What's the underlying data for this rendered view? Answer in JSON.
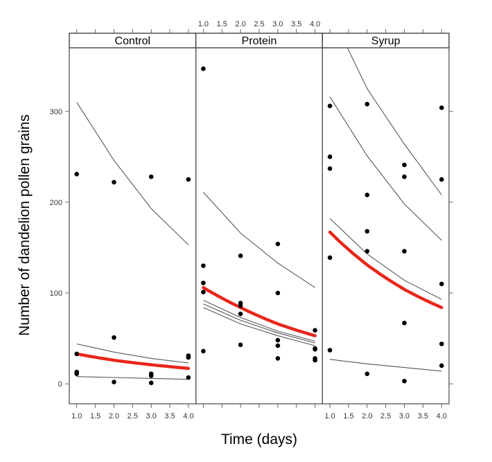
{
  "chart_data": {
    "type": "scatter",
    "layout": "trellis",
    "xlabel": "Time (days)",
    "ylabel": "Number of dandelion pollen grains",
    "xlim": [
      0.8,
      4.2
    ],
    "ylim": [
      -22,
      370
    ],
    "x_ticks": [
      1.0,
      1.5,
      2.0,
      2.5,
      3.0,
      3.5,
      4.0
    ],
    "x_tick_labels": [
      "1.0",
      "1.5",
      "2.0",
      "2.5",
      "3.0",
      "3.5",
      "4.0"
    ],
    "y_ticks": [
      0,
      100,
      200,
      300
    ],
    "y_tick_labels": [
      "0",
      "100",
      "200",
      "300"
    ],
    "colors": {
      "points": "#000000",
      "fit": "#e8261a",
      "curves": "#555555",
      "frame": "#777777"
    },
    "panels": [
      {
        "name": "Control",
        "points": [
          {
            "x": 1,
            "y": 231
          },
          {
            "x": 1,
            "y": 33
          },
          {
            "x": 1,
            "y": 13
          },
          {
            "x": 1,
            "y": 11
          },
          {
            "x": 2,
            "y": 222
          },
          {
            "x": 2,
            "y": 51
          },
          {
            "x": 2,
            "y": 2
          },
          {
            "x": 3,
            "y": 228
          },
          {
            "x": 3,
            "y": 11
          },
          {
            "x": 3,
            "y": 9
          },
          {
            "x": 3,
            "y": 1
          },
          {
            "x": 4,
            "y": 225
          },
          {
            "x": 4,
            "y": 31
          },
          {
            "x": 4,
            "y": 29
          },
          {
            "x": 4,
            "y": 7
          }
        ],
        "fit": {
          "x": [
            1,
            2,
            3,
            4
          ],
          "y": [
            33,
            26,
            21,
            17
          ]
        },
        "curves": [
          {
            "x": [
              1,
              2,
              3,
              4
            ],
            "y": [
              310,
              246,
              193,
              153
            ]
          },
          {
            "x": [
              1,
              2,
              3,
              4
            ],
            "y": [
              44,
              35,
              28,
              23
            ]
          },
          {
            "x": [
              1,
              2,
              3,
              4
            ],
            "y": [
              8,
              7,
              6,
              5
            ]
          }
        ]
      },
      {
        "name": "Protein",
        "points": [
          {
            "x": 1,
            "y": 347
          },
          {
            "x": 1,
            "y": 130
          },
          {
            "x": 1,
            "y": 111
          },
          {
            "x": 1,
            "y": 101
          },
          {
            "x": 1,
            "y": 36
          },
          {
            "x": 2,
            "y": 141
          },
          {
            "x": 2,
            "y": 89
          },
          {
            "x": 2,
            "y": 86
          },
          {
            "x": 2,
            "y": 77
          },
          {
            "x": 2,
            "y": 43
          },
          {
            "x": 3,
            "y": 154
          },
          {
            "x": 3,
            "y": 100
          },
          {
            "x": 3,
            "y": 48
          },
          {
            "x": 3,
            "y": 42
          },
          {
            "x": 3,
            "y": 28
          },
          {
            "x": 4,
            "y": 59
          },
          {
            "x": 4,
            "y": 39
          },
          {
            "x": 4,
            "y": 38
          },
          {
            "x": 4,
            "y": 28
          },
          {
            "x": 4,
            "y": 26
          }
        ],
        "fit": {
          "x": [
            1,
            2,
            3,
            4
          ],
          "y": [
            106,
            84,
            66,
            53
          ]
        },
        "curves": [
          {
            "x": [
              1,
              2,
              3,
              4
            ],
            "y": [
              211,
              166,
              133,
              106
            ]
          },
          {
            "x": [
              1,
              2,
              3,
              4
            ],
            "y": [
              92,
              73,
              58,
              47
            ]
          },
          {
            "x": [
              1,
              2,
              3,
              4
            ],
            "y": [
              88,
              70,
              56,
              45
            ]
          },
          {
            "x": [
              1,
              2,
              3,
              4
            ],
            "y": [
              84,
              66,
              53,
              42
            ]
          }
        ]
      },
      {
        "name": "Syrup",
        "points": [
          {
            "x": 1,
            "y": 306
          },
          {
            "x": 1,
            "y": 250
          },
          {
            "x": 1,
            "y": 237
          },
          {
            "x": 1,
            "y": 139
          },
          {
            "x": 1,
            "y": 37
          },
          {
            "x": 2,
            "y": 308
          },
          {
            "x": 2,
            "y": 208
          },
          {
            "x": 2,
            "y": 168
          },
          {
            "x": 2,
            "y": 146
          },
          {
            "x": 2,
            "y": 11
          },
          {
            "x": 3,
            "y": 241
          },
          {
            "x": 3,
            "y": 228
          },
          {
            "x": 3,
            "y": 146
          },
          {
            "x": 3,
            "y": 67
          },
          {
            "x": 3,
            "y": 3
          },
          {
            "x": 4,
            "y": 304
          },
          {
            "x": 4,
            "y": 225
          },
          {
            "x": 4,
            "y": 110
          },
          {
            "x": 4,
            "y": 44
          },
          {
            "x": 4,
            "y": 20
          }
        ],
        "fit": {
          "x": [
            1,
            2,
            3,
            4
          ],
          "y": [
            167,
            131,
            104,
            84
          ]
        },
        "curves": [
          {
            "x": [
              1,
              2,
              3,
              4
            ],
            "y": [
              410,
              325,
              264,
              208
            ]
          },
          {
            "x": [
              1,
              2,
              3,
              4
            ],
            "y": [
              316,
              251,
              198,
              158
            ]
          },
          {
            "x": [
              1,
              2,
              3,
              4
            ],
            "y": [
              182,
              143,
              114,
              93
            ]
          },
          {
            "x": [
              1,
              2,
              3,
              4
            ],
            "y": [
              27,
              22,
              18,
              14
            ]
          }
        ]
      }
    ]
  }
}
